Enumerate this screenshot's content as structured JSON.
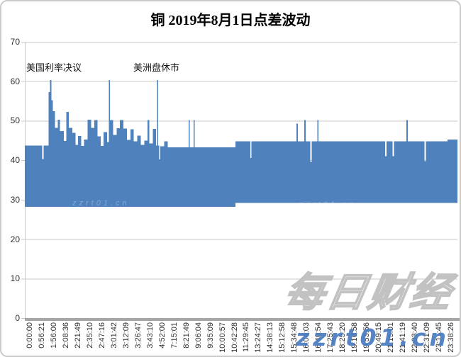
{
  "title": "铜 2019年8月1日点差波动",
  "annotations": {
    "rate_decision": "美国利率决议",
    "market_closed": "美洲盘休市"
  },
  "watermarks": {
    "outline_text": "每日财经",
    "site_text": "zzrt01.cn",
    "inner_left": "zzrt01.cn",
    "inner_right": "zzrt01.cn"
  },
  "chart_data": {
    "type": "bar",
    "title": "铜 2019年8月1日点差波动",
    "ylabel": "",
    "xlabel": "",
    "ylim": [
      0,
      70
    ],
    "yticks": [
      0,
      10,
      20,
      30,
      40,
      50,
      60,
      70
    ],
    "grid": "horizontal",
    "legend": "none",
    "bar_color": "#4f81bd",
    "grid_color": "#c9c9c9",
    "axis_color": "#a6a6a6",
    "label_color": "#303030",
    "xticklabels": [
      "0:00:00",
      "0:56:21",
      "1:56:00",
      "2:08:36",
      "2:21:49",
      "2:35:10",
      "2:47:16",
      "3:01:42",
      "3:12:09",
      "3:26:47",
      "3:43:10",
      "4:52:00",
      "7:15:01",
      "8:21:49",
      "9:06:04",
      "9:35:09",
      "10:00:57",
      "10:42:28",
      "11:29:45",
      "13:24:27",
      "14:38:13",
      "15:12:58",
      "15:34:48",
      "16:04:03",
      "16:40:54",
      "17:25:43",
      "18:25:20",
      "19:16:58",
      "19:53:56",
      "20:49:15",
      "21:15:01",
      "21:41:19",
      "22:03:40",
      "22:31:09",
      "23:11:45",
      "23:38:26"
    ],
    "segments_format": [
      "x_fraction_start",
      "x_fraction_end",
      "low_value",
      "high_value"
    ],
    "segments": [
      [
        0.0,
        0.04,
        28.2,
        43.7
      ],
      [
        0.04,
        0.0435,
        28.2,
        40.3
      ],
      [
        0.0435,
        0.055,
        28.2,
        43.7
      ],
      [
        0.055,
        0.058,
        28.2,
        57.3
      ],
      [
        0.058,
        0.0615,
        28.2,
        60.3
      ],
      [
        0.0615,
        0.065,
        28.2,
        55.2
      ],
      [
        0.065,
        0.07,
        28.2,
        52.4
      ],
      [
        0.07,
        0.076,
        28.2,
        48.2
      ],
      [
        0.076,
        0.0815,
        28.2,
        50.3
      ],
      [
        0.0815,
        0.09,
        28.2,
        47.4
      ],
      [
        0.09,
        0.096,
        28.2,
        44.9
      ],
      [
        0.096,
        0.102,
        28.2,
        52.2
      ],
      [
        0.102,
        0.11,
        28.2,
        48.2
      ],
      [
        0.11,
        0.117,
        28.2,
        46.9
      ],
      [
        0.117,
        0.123,
        28.2,
        43.9
      ],
      [
        0.123,
        0.13,
        28.2,
        46.1
      ],
      [
        0.13,
        0.137,
        28.2,
        43.6
      ],
      [
        0.137,
        0.145,
        28.2,
        45.2
      ],
      [
        0.145,
        0.153,
        28.2,
        50.3
      ],
      [
        0.153,
        0.161,
        28.2,
        48.2
      ],
      [
        0.161,
        0.168,
        28.2,
        50.2
      ],
      [
        0.168,
        0.175,
        28.2,
        46.0
      ],
      [
        0.175,
        0.182,
        28.2,
        43.6
      ],
      [
        0.182,
        0.19,
        28.2,
        47.1
      ],
      [
        0.19,
        0.1945,
        28.2,
        44.6
      ],
      [
        0.1945,
        0.197,
        28.2,
        60.3
      ],
      [
        0.197,
        0.204,
        28.2,
        50.2
      ],
      [
        0.204,
        0.212,
        28.2,
        46.4
      ],
      [
        0.212,
        0.22,
        28.2,
        48.1
      ],
      [
        0.22,
        0.228,
        28.2,
        50.2
      ],
      [
        0.228,
        0.236,
        28.2,
        48.0
      ],
      [
        0.236,
        0.244,
        28.2,
        45.1
      ],
      [
        0.244,
        0.252,
        28.2,
        47.8
      ],
      [
        0.252,
        0.26,
        28.2,
        44.8
      ],
      [
        0.26,
        0.268,
        28.2,
        46.2
      ],
      [
        0.268,
        0.276,
        28.2,
        43.9
      ],
      [
        0.276,
        0.284,
        28.2,
        45.0
      ],
      [
        0.284,
        0.288,
        28.2,
        50.2
      ],
      [
        0.288,
        0.296,
        28.2,
        44.2
      ],
      [
        0.296,
        0.303,
        28.2,
        47.9
      ],
      [
        0.303,
        0.3055,
        28.2,
        43.7
      ],
      [
        0.3055,
        0.308,
        28.2,
        60.3
      ],
      [
        0.308,
        0.311,
        28.2,
        43.7
      ],
      [
        0.311,
        0.313,
        28.2,
        40.2
      ],
      [
        0.313,
        0.322,
        28.2,
        43.5
      ],
      [
        0.322,
        0.33,
        28.2,
        44.8
      ],
      [
        0.33,
        0.379,
        28.2,
        43.3
      ],
      [
        0.379,
        0.3815,
        28.2,
        50.2
      ],
      [
        0.3815,
        0.39,
        28.2,
        43.3
      ],
      [
        0.39,
        0.3925,
        28.2,
        50.2
      ],
      [
        0.3925,
        0.487,
        28.2,
        43.3
      ],
      [
        0.487,
        0.521,
        29.2,
        44.8
      ],
      [
        0.521,
        0.524,
        29.2,
        40.6
      ],
      [
        0.524,
        0.628,
        29.2,
        44.8
      ],
      [
        0.628,
        0.631,
        29.2,
        49.3
      ],
      [
        0.631,
        0.646,
        29.2,
        44.8
      ],
      [
        0.646,
        0.649,
        29.2,
        50.2
      ],
      [
        0.649,
        0.66,
        29.2,
        44.8
      ],
      [
        0.66,
        0.663,
        29.2,
        39.6
      ],
      [
        0.663,
        0.676,
        29.2,
        44.8
      ],
      [
        0.676,
        0.679,
        29.2,
        50.2
      ],
      [
        0.679,
        0.833,
        29.2,
        44.8
      ],
      [
        0.833,
        0.836,
        29.2,
        41.0
      ],
      [
        0.836,
        0.85,
        29.2,
        44.8
      ],
      [
        0.85,
        0.853,
        29.2,
        41.0
      ],
      [
        0.853,
        0.882,
        29.2,
        44.8
      ],
      [
        0.882,
        0.885,
        29.2,
        50.2
      ],
      [
        0.885,
        0.924,
        29.2,
        44.8
      ],
      [
        0.924,
        0.927,
        29.2,
        39.8
      ],
      [
        0.927,
        0.977,
        29.2,
        44.8
      ],
      [
        0.977,
        1.0,
        29.2,
        45.2
      ]
    ]
  }
}
